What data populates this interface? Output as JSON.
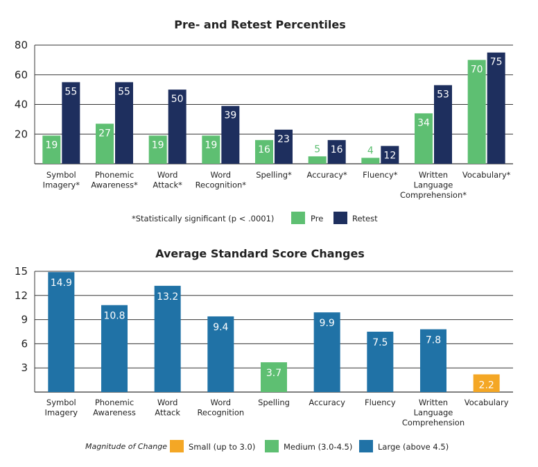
{
  "colors": {
    "pre": "#5ebf72",
    "retest": "#1e2f5e",
    "small": "#f4a725",
    "medium": "#5ebf72",
    "large": "#2072a6",
    "grid": "#333333"
  },
  "chart_data": [
    {
      "type": "bar",
      "title": "Pre- and Retest Percentiles",
      "ylim": [
        0,
        80
      ],
      "yticks": [
        20,
        40,
        60,
        80
      ],
      "categories": [
        [
          "Symbol",
          "Imagery*"
        ],
        [
          "Phonemic",
          "Awareness*"
        ],
        [
          "Word",
          "Attack*"
        ],
        [
          "Word",
          "Recognition*"
        ],
        [
          "Spelling*"
        ],
        [
          "Accuracy*"
        ],
        [
          "Fluency*"
        ],
        [
          "Written",
          "Language",
          "Comprehension*"
        ],
        [
          "Vocabulary*"
        ]
      ],
      "series": [
        {
          "name": "Pre",
          "values": [
            19,
            27,
            19,
            19,
            16,
            5,
            4,
            34,
            70
          ]
        },
        {
          "name": "Retest",
          "values": [
            55,
            55,
            50,
            39,
            23,
            16,
            12,
            53,
            75
          ]
        }
      ],
      "note": "*Statistically significant (p < .0001)",
      "legend": [
        "Pre",
        "Retest"
      ]
    },
    {
      "type": "bar",
      "title": "Average Standard Score Changes",
      "ylim": [
        0,
        15
      ],
      "yticks": [
        3,
        6,
        9,
        12,
        15
      ],
      "categories": [
        [
          "Symbol",
          "Imagery"
        ],
        [
          "Phonemic",
          "Awareness"
        ],
        [
          "Word",
          "Attack"
        ],
        [
          "Word",
          "Recognition"
        ],
        [
          "Spelling"
        ],
        [
          "Accuracy"
        ],
        [
          "Fluency"
        ],
        [
          "Written",
          "Language",
          "Comprehension"
        ],
        [
          "Vocabulary"
        ]
      ],
      "values": [
        14.9,
        10.8,
        13.2,
        9.4,
        3.7,
        9.9,
        7.5,
        7.8,
        2.2
      ],
      "magnitudes": [
        "large",
        "large",
        "large",
        "large",
        "medium",
        "large",
        "large",
        "large",
        "small"
      ],
      "legend_title": "Magnitude of Change",
      "legend": [
        {
          "key": "small",
          "label": "Small (up to 3.0)"
        },
        {
          "key": "medium",
          "label": "Medium (3.0-4.5)"
        },
        {
          "key": "large",
          "label": "Large (above 4.5)"
        }
      ]
    }
  ]
}
